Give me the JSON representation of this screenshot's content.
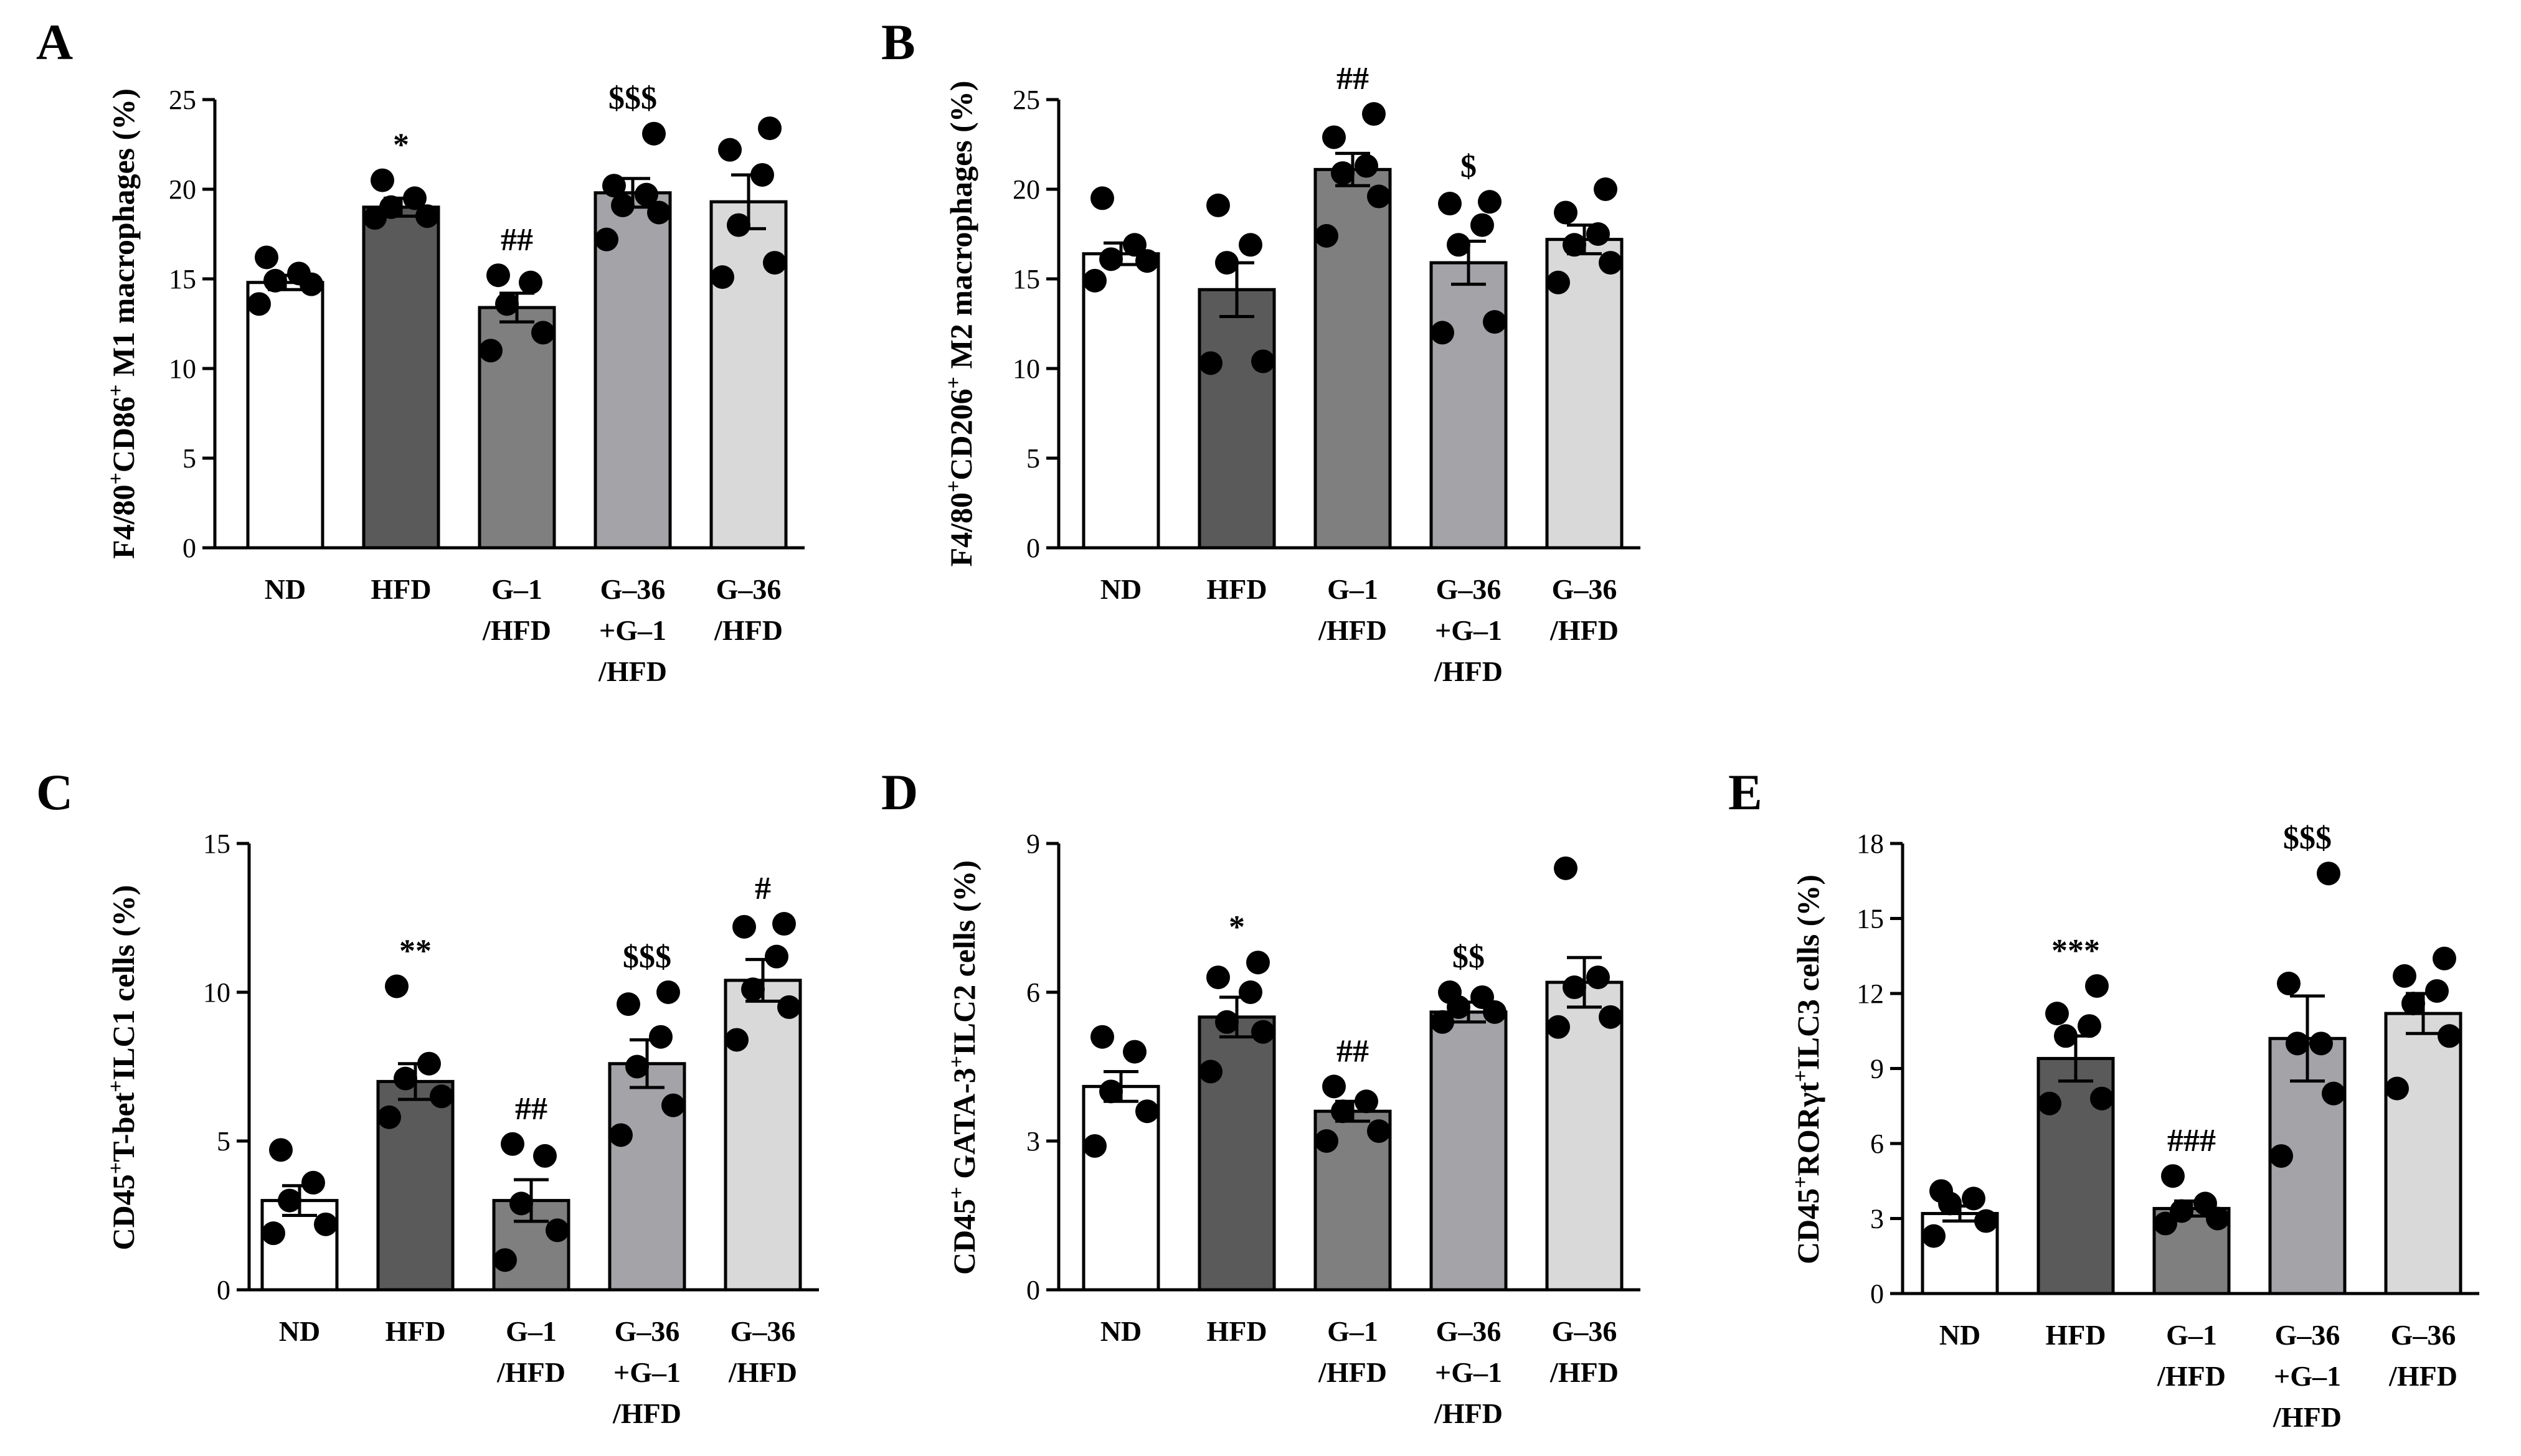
{
  "colors": {
    "ND": "#ffffff",
    "HFD": "#5a5a5a",
    "G-1/HFD": "#7f7f7f",
    "G-36+G-1/HFD": "#a4a3a8",
    "G-36/HFD": "#d9d9d9",
    "ink": "#000000"
  },
  "chart_data": [
    {
      "panel_label": "A",
      "type": "bar",
      "ylabel_parts": [
        [
          "F4/80",
          ""
        ],
        [
          "+",
          "sup"
        ],
        [
          "CD86",
          ""
        ],
        [
          "+",
          "sup"
        ],
        [
          " M1 macrophages (%)",
          ""
        ]
      ],
      "ylim": [
        0,
        25
      ],
      "yticks": [
        0,
        5,
        10,
        15,
        20,
        25
      ],
      "categories": [
        [
          "ND"
        ],
        [
          "HFD"
        ],
        [
          "G–1",
          "/HFD"
        ],
        [
          "G–36",
          "+G–1",
          "/HFD"
        ],
        [
          "G–36",
          "/HFD"
        ]
      ],
      "values": [
        14.8,
        19.0,
        13.4,
        19.8,
        19.3
      ],
      "sem": [
        0.4,
        0.5,
        0.8,
        0.8,
        1.5
      ],
      "points": [
        [
          13.6,
          14.7,
          14.9,
          15.3,
          16.2
        ],
        [
          18.4,
          18.5,
          19.0,
          19.5,
          20.5
        ],
        [
          11.0,
          12.0,
          13.6,
          14.8,
          15.2
        ],
        [
          17.2,
          18.7,
          19.1,
          19.7,
          20.2,
          23.1
        ],
        [
          15.1,
          15.9,
          18.0,
          20.8,
          22.2,
          23.4
        ]
      ],
      "significance": [
        "",
        "*",
        "##",
        "$$$",
        ""
      ]
    },
    {
      "panel_label": "B",
      "type": "bar",
      "ylabel_parts": [
        [
          "F4/80",
          ""
        ],
        [
          "+",
          "sup"
        ],
        [
          "CD206",
          ""
        ],
        [
          "+",
          "sup"
        ],
        [
          " M2 macrophages (%)",
          ""
        ]
      ],
      "ylim": [
        0,
        25
      ],
      "yticks": [
        0,
        5,
        10,
        15,
        20,
        25
      ],
      "categories": [
        [
          "ND"
        ],
        [
          "HFD"
        ],
        [
          "G–1",
          "/HFD"
        ],
        [
          "G–36",
          "+G–1",
          "/HFD"
        ],
        [
          "G–36",
          "/HFD"
        ]
      ],
      "values": [
        16.4,
        14.4,
        21.1,
        15.9,
        17.2
      ],
      "sem": [
        0.6,
        1.5,
        0.9,
        1.2,
        0.8
      ],
      "points": [
        [
          14.9,
          16.0,
          16.1,
          16.9,
          19.5
        ],
        [
          10.3,
          10.4,
          15.9,
          16.9,
          19.1
        ],
        [
          17.4,
          19.6,
          20.9,
          21.3,
          22.9,
          24.2
        ],
        [
          12.0,
          12.6,
          16.9,
          18.0,
          19.2,
          19.3
        ],
        [
          14.8,
          15.9,
          16.9,
          17.5,
          18.7,
          20.0
        ]
      ],
      "significance": [
        "",
        "",
        "##",
        "$",
        ""
      ]
    },
    {
      "panel_label": "C",
      "type": "bar",
      "ylabel_parts": [
        [
          "CD45",
          ""
        ],
        [
          "+",
          "sup"
        ],
        [
          "T-bet",
          ""
        ],
        [
          "+",
          "sup"
        ],
        [
          "ILC1 cells (%)",
          ""
        ]
      ],
      "ylim": [
        0,
        15
      ],
      "yticks": [
        0,
        5,
        10,
        15
      ],
      "categories": [
        [
          "ND"
        ],
        [
          "HFD"
        ],
        [
          "G–1",
          "/HFD"
        ],
        [
          "G–36",
          "+G–1",
          "/HFD"
        ],
        [
          "G–36",
          "/HFD"
        ]
      ],
      "values": [
        3.0,
        7.0,
        3.0,
        7.6,
        10.4
      ],
      "sem": [
        0.5,
        0.6,
        0.7,
        0.8,
        0.7
      ],
      "points": [
        [
          1.9,
          2.2,
          3.0,
          3.6,
          4.7
        ],
        [
          5.8,
          6.5,
          7.1,
          7.6,
          10.2
        ],
        [
          1.0,
          2.0,
          2.9,
          4.5,
          4.9
        ],
        [
          5.2,
          6.2,
          7.5,
          8.5,
          9.6,
          10.0
        ],
        [
          8.4,
          9.5,
          10.1,
          11.2,
          12.2,
          12.3
        ]
      ],
      "significance": [
        "",
        "**",
        "##",
        "$$$",
        "#"
      ]
    },
    {
      "panel_label": "D",
      "type": "bar",
      "ylabel_parts": [
        [
          "CD45",
          ""
        ],
        [
          "+",
          "sup"
        ],
        [
          " GATA-3",
          ""
        ],
        [
          "+",
          "sup"
        ],
        [
          "ILC2 cells (%)",
          ""
        ]
      ],
      "ylim": [
        0,
        9
      ],
      "yticks": [
        0,
        3,
        6,
        9
      ],
      "categories": [
        [
          "ND"
        ],
        [
          "HFD"
        ],
        [
          "G–1",
          "/HFD"
        ],
        [
          "G–36",
          "+G–1",
          "/HFD"
        ],
        [
          "G–36",
          "/HFD"
        ]
      ],
      "values": [
        4.1,
        5.5,
        3.6,
        5.6,
        6.2
      ],
      "sem": [
        0.3,
        0.4,
        0.2,
        0.2,
        0.5
      ],
      "points": [
        [
          2.9,
          3.6,
          4.0,
          4.8,
          5.1
        ],
        [
          4.4,
          5.2,
          5.4,
          6.0,
          6.3,
          6.6
        ],
        [
          3.0,
          3.2,
          3.6,
          3.8,
          4.1
        ],
        [
          5.4,
          5.6,
          5.7,
          5.9,
          6.0
        ],
        [
          5.3,
          5.5,
          6.1,
          6.3,
          8.5
        ]
      ],
      "significance": [
        "",
        "*",
        "##",
        "$$",
        ""
      ]
    },
    {
      "panel_label": "E",
      "type": "bar",
      "ylabel_parts": [
        [
          "CD45",
          ""
        ],
        [
          "+",
          "sup"
        ],
        [
          "RORγt",
          ""
        ],
        [
          "+",
          "sup"
        ],
        [
          "ILC3 cells (%)",
          ""
        ]
      ],
      "ylim": [
        0,
        18
      ],
      "yticks": [
        0,
        3,
        6,
        9,
        12,
        15,
        18
      ],
      "categories": [
        [
          "ND"
        ],
        [
          "HFD"
        ],
        [
          "G–1",
          "/HFD"
        ],
        [
          "G–36",
          "+G–1",
          "/HFD"
        ],
        [
          "G–36",
          "/HFD"
        ]
      ],
      "values": [
        3.2,
        9.4,
        3.4,
        10.2,
        11.2
      ],
      "sem": [
        0.3,
        0.9,
        0.3,
        1.7,
        0.8
      ],
      "points": [
        [
          2.3,
          2.9,
          3.6,
          3.8,
          4.1
        ],
        [
          7.6,
          7.8,
          10.3,
          10.7,
          11.2,
          12.3
        ],
        [
          2.8,
          3.0,
          3.3,
          3.6,
          4.7
        ],
        [
          5.5,
          8.0,
          10.0,
          10.0,
          12.4,
          16.8
        ],
        [
          8.2,
          10.3,
          11.6,
          12.1,
          12.7,
          13.4
        ]
      ],
      "significance": [
        "",
        "***",
        "###",
        "$$$",
        ""
      ]
    }
  ]
}
